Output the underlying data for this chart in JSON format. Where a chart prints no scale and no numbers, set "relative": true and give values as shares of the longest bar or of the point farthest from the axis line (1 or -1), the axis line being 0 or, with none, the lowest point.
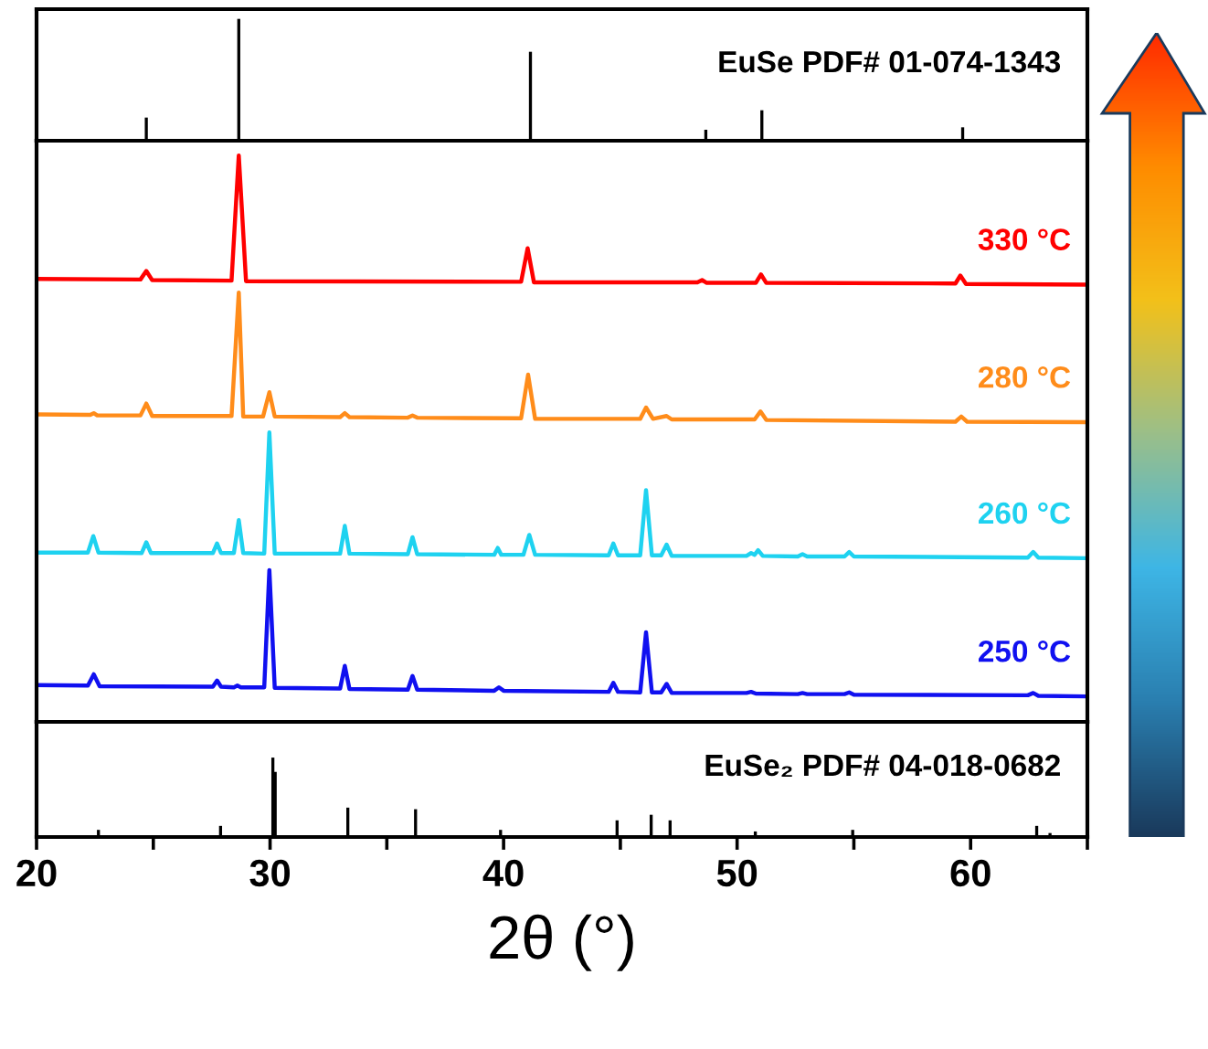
{
  "chart_data": [
    {
      "type": "bar",
      "relative": true,
      "tick_labels": false,
      "xlim": [
        20,
        65
      ],
      "x": [
        24.7,
        28.66,
        41.15,
        48.66,
        51.06,
        59.66
      ],
      "series": [
        {
          "name": "EuSe PDF# 01-074-1343",
          "color": "#000000",
          "values": [
            0.19,
            1,
            0.73,
            0.09,
            0.25,
            0.11
          ]
        }
      ]
    },
    {
      "type": "line",
      "relative": true,
      "tick_labels": false,
      "xlim": [
        20,
        65
      ],
      "series": [
        {
          "name": "330 °C",
          "color": "#ff0000",
          "x": [
            20,
            24.45,
            24.7,
            24.95,
            28.35,
            28.66,
            28.97,
            40.75,
            41.03,
            41.3,
            48.3,
            48.5,
            48.7,
            50.8,
            51.02,
            51.25,
            59.35,
            59.56,
            59.8,
            65
          ],
          "values": [
            0.782,
            0.781,
            0.796,
            0.78,
            0.779,
            1.0,
            0.778,
            0.777,
            0.836,
            0.776,
            0.776,
            0.78,
            0.775,
            0.775,
            0.79,
            0.775,
            0.774,
            0.788,
            0.773,
            0.772
          ]
        },
        {
          "name": "280 °C",
          "color": "#ff8c1a",
          "x": [
            20,
            22.3,
            22.45,
            22.6,
            24.45,
            24.7,
            24.95,
            28.35,
            28.66,
            28.85,
            29.7,
            29.97,
            30.2,
            33.0,
            33.2,
            33.4,
            35.9,
            36.1,
            36.3,
            40.75,
            41.05,
            41.35,
            45.85,
            46.1,
            46.4,
            46.98,
            47.2,
            50.75,
            51.0,
            51.25,
            59.35,
            59.6,
            59.85,
            65
          ],
          "values": [
            0.543,
            0.542,
            0.545,
            0.541,
            0.541,
            0.562,
            0.54,
            0.54,
            0.758,
            0.539,
            0.539,
            0.582,
            0.539,
            0.538,
            0.545,
            0.538,
            0.537,
            0.541,
            0.537,
            0.536,
            0.613,
            0.535,
            0.535,
            0.555,
            0.535,
            0.54,
            0.534,
            0.534,
            0.548,
            0.533,
            0.53,
            0.539,
            0.53,
            0.529
          ]
        },
        {
          "name": "260 °C",
          "color": "#1ed2f0",
          "x": [
            20,
            22.2,
            22.43,
            22.65,
            24.5,
            24.7,
            24.9,
            27.55,
            27.73,
            27.9,
            28.45,
            28.66,
            28.85,
            29.75,
            29.97,
            30.2,
            33.0,
            33.2,
            33.4,
            35.9,
            36.1,
            36.3,
            39.6,
            39.75,
            39.9,
            40.85,
            41.1,
            41.35,
            44.5,
            44.7,
            44.9,
            45.85,
            46.1,
            46.35,
            46.75,
            46.98,
            47.2,
            50.4,
            50.6,
            50.75,
            50.9,
            51.1,
            52.6,
            52.8,
            53.0,
            54.6,
            54.8,
            55.0,
            62.45,
            62.68,
            62.9,
            65
          ],
          "values": [
            0.299,
            0.299,
            0.328,
            0.299,
            0.298,
            0.317,
            0.298,
            0.298,
            0.315,
            0.298,
            0.298,
            0.356,
            0.298,
            0.297,
            0.511,
            0.297,
            0.297,
            0.346,
            0.297,
            0.296,
            0.326,
            0.296,
            0.295,
            0.307,
            0.295,
            0.295,
            0.33,
            0.295,
            0.294,
            0.315,
            0.294,
            0.294,
            0.409,
            0.294,
            0.294,
            0.313,
            0.293,
            0.293,
            0.298,
            0.295,
            0.303,
            0.293,
            0.292,
            0.296,
            0.292,
            0.292,
            0.3,
            0.292,
            0.29,
            0.3,
            0.29,
            0.289
          ]
        },
        {
          "name": "250 °C",
          "color": "#1010f0",
          "x": [
            20,
            22.2,
            22.45,
            22.7,
            27.55,
            27.73,
            27.9,
            28.45,
            28.6,
            28.75,
            29.75,
            29.97,
            30.2,
            33.0,
            33.2,
            33.4,
            35.9,
            36.1,
            36.3,
            39.6,
            39.8,
            40.0,
            44.5,
            44.7,
            44.9,
            45.85,
            46.1,
            46.35,
            46.75,
            46.98,
            47.2,
            50.4,
            50.6,
            50.8,
            52.6,
            52.8,
            53.0,
            54.6,
            54.8,
            55.0,
            62.45,
            62.68,
            62.9,
            65
          ],
          "values": [
            0.065,
            0.064,
            0.084,
            0.063,
            0.062,
            0.073,
            0.062,
            0.061,
            0.064,
            0.061,
            0.061,
            0.268,
            0.06,
            0.059,
            0.099,
            0.058,
            0.057,
            0.081,
            0.057,
            0.055,
            0.061,
            0.055,
            0.053,
            0.069,
            0.053,
            0.052,
            0.158,
            0.052,
            0.052,
            0.067,
            0.051,
            0.051,
            0.053,
            0.05,
            0.049,
            0.051,
            0.049,
            0.049,
            0.052,
            0.048,
            0.047,
            0.051,
            0.046,
            0.045
          ]
        }
      ]
    },
    {
      "type": "bar",
      "relative": true,
      "tick_labels": "x",
      "xlim": [
        20,
        65
      ],
      "xlabel": "2θ (°)",
      "xticks": [
        20,
        {
          "value": 25,
          "label": null
        },
        30,
        {
          "value": 35,
          "label": null
        },
        40,
        {
          "value": 45,
          "label": null
        },
        50,
        {
          "value": 55,
          "label": null
        },
        60,
        {
          "value": 65,
          "label": null
        }
      ],
      "x": [
        22.65,
        27.88,
        30.12,
        30.22,
        33.33,
        36.23,
        39.87,
        44.86,
        46.32,
        47.13,
        50.78,
        54.95,
        62.83,
        63.4
      ],
      "series": [
        {
          "name": "EuSe₂ PDF# 04-018-0682",
          "color": "#000000",
          "values": [
            0.09,
            0.14,
            1,
            0.82,
            0.37,
            0.35,
            0.09,
            0.21,
            0.28,
            0.21,
            0.07,
            0.09,
            0.14,
            0.05
          ]
        }
      ]
    }
  ]
}
